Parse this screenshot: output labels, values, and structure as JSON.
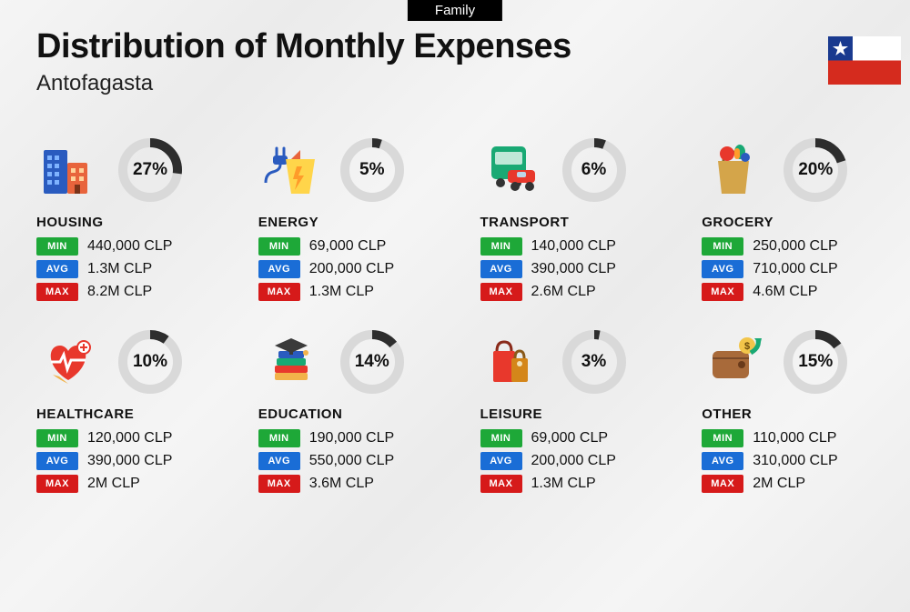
{
  "tab_label": "Family",
  "title": "Distribution of Monthly Expenses",
  "subtitle": "Antofagasta",
  "colors": {
    "donut_track": "#d9d9d9",
    "donut_progress": "#2d2d2d",
    "min_badge": "#1ea838",
    "avg_badge": "#1a6dd6",
    "max_badge": "#d61a1a",
    "text": "#111111"
  },
  "badge_labels": {
    "min": "MIN",
    "avg": "AVG",
    "max": "MAX"
  },
  "flag": {
    "blue": "#1a3a8f",
    "red": "#d52b1e",
    "white": "#ffffff"
  },
  "categories": [
    {
      "name": "HOUSING",
      "percent": 27,
      "min": "440,000 CLP",
      "avg": "1.3M CLP",
      "max": "8.2M CLP",
      "icon": "buildings"
    },
    {
      "name": "ENERGY",
      "percent": 5,
      "min": "69,000 CLP",
      "avg": "200,000 CLP",
      "max": "1.3M CLP",
      "icon": "energy"
    },
    {
      "name": "TRANSPORT",
      "percent": 6,
      "min": "140,000 CLP",
      "avg": "390,000 CLP",
      "max": "2.6M CLP",
      "icon": "transport"
    },
    {
      "name": "GROCERY",
      "percent": 20,
      "min": "250,000 CLP",
      "avg": "710,000 CLP",
      "max": "4.6M CLP",
      "icon": "grocery"
    },
    {
      "name": "HEALTHCARE",
      "percent": 10,
      "min": "120,000 CLP",
      "avg": "390,000 CLP",
      "max": "2M CLP",
      "icon": "healthcare"
    },
    {
      "name": "EDUCATION",
      "percent": 14,
      "min": "190,000 CLP",
      "avg": "550,000 CLP",
      "max": "3.6M CLP",
      "icon": "education"
    },
    {
      "name": "LEISURE",
      "percent": 3,
      "min": "69,000 CLP",
      "avg": "200,000 CLP",
      "max": "1.3M CLP",
      "icon": "leisure"
    },
    {
      "name": "OTHER",
      "percent": 15,
      "min": "110,000 CLP",
      "avg": "310,000 CLP",
      "max": "2M CLP",
      "icon": "other"
    }
  ]
}
